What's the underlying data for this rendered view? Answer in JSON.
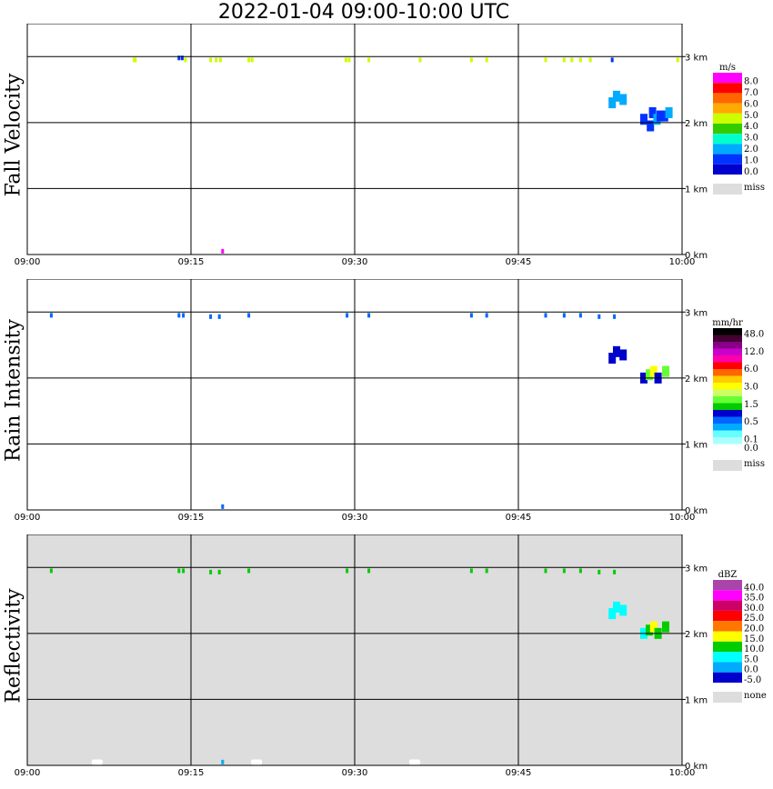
{
  "title": "2022-01-04   09:00-10:00 UTC",
  "x_ticks": [
    "09:00",
    "09:15",
    "09:30",
    "09:45",
    "10:00"
  ],
  "y_ticks": [
    "0 km",
    "1 km",
    "2 km",
    "3 km"
  ],
  "colors": {
    "grid": "#000000",
    "missing_bg": "#dddddd",
    "frame": "#000000"
  },
  "chart_data": [
    {
      "type": "heatmap",
      "name": "fall_velocity",
      "title": "Fall Velocity",
      "xlabel": "",
      "ylabel": "Fall Velocity",
      "xlim": [
        "09:00",
        "10:00"
      ],
      "ylim": [
        0,
        3.5
      ],
      "y_unit": "km",
      "grid": true,
      "background": "#ffffff",
      "colorbar": {
        "unit": "m/s",
        "labels": [
          "8.0",
          "7.0",
          "6.0",
          "5.0",
          "4.0",
          "3.0",
          "2.0",
          "1.0",
          "0.0"
        ],
        "colors": [
          "#ff00ff",
          "#ff0000",
          "#ff6600",
          "#ffaa00",
          "#ccff00",
          "#33cc00",
          "#00ffcc",
          "#00aaff",
          "#0033ff",
          "#0000cc"
        ],
        "missing_label": "miss",
        "missing_color": "#dddddd"
      },
      "blobs": [
        {
          "t": 9.8,
          "h": 2.95,
          "v": 4.5
        },
        {
          "t": 9.85,
          "h": 2.95,
          "v": 4.5
        },
        {
          "t": 9.9,
          "h": 2.95,
          "v": 4.5
        },
        {
          "t": 13.9,
          "h": 2.98,
          "v": 0.5
        },
        {
          "t": 14.2,
          "h": 2.98,
          "v": 0.5
        },
        {
          "t": 14.5,
          "h": 2.95,
          "v": 4.5
        },
        {
          "t": 16.8,
          "h": 2.95,
          "v": 4.5
        },
        {
          "t": 17.3,
          "h": 2.95,
          "v": 4.5
        },
        {
          "t": 17.7,
          "h": 2.95,
          "v": 4.5
        },
        {
          "t": 20.3,
          "h": 2.95,
          "v": 4.5
        },
        {
          "t": 20.6,
          "h": 2.95,
          "v": 4.5
        },
        {
          "t": 29.2,
          "h": 2.95,
          "v": 4.5
        },
        {
          "t": 29.5,
          "h": 2.95,
          "v": 4.5
        },
        {
          "t": 31.3,
          "h": 2.95,
          "v": 4.5
        },
        {
          "t": 36.0,
          "h": 2.95,
          "v": 4.5
        },
        {
          "t": 40.7,
          "h": 2.95,
          "v": 4.5
        },
        {
          "t": 42.1,
          "h": 2.95,
          "v": 4.5
        },
        {
          "t": 47.5,
          "h": 2.95,
          "v": 4.5
        },
        {
          "t": 49.2,
          "h": 2.95,
          "v": 4.5
        },
        {
          "t": 49.9,
          "h": 2.95,
          "v": 4.5
        },
        {
          "t": 50.7,
          "h": 2.95,
          "v": 4.5
        },
        {
          "t": 51.6,
          "h": 2.95,
          "v": 4.5
        },
        {
          "t": 53.6,
          "h": 2.95,
          "v": 0.5
        },
        {
          "t": 59.6,
          "h": 2.95,
          "v": 4.5
        },
        {
          "t": 53.6,
          "h": 2.3,
          "v": 1.5
        },
        {
          "t": 54.0,
          "h": 2.4,
          "v": 1.5
        },
        {
          "t": 54.6,
          "h": 2.35,
          "v": 1.5
        },
        {
          "t": 56.5,
          "h": 2.05,
          "v": 0.5
        },
        {
          "t": 57.1,
          "h": 1.95,
          "v": 0.5
        },
        {
          "t": 57.3,
          "h": 2.15,
          "v": 0.5
        },
        {
          "t": 57.7,
          "h": 2.05,
          "v": 1.5
        },
        {
          "t": 58.0,
          "h": 2.1,
          "v": 0.5
        },
        {
          "t": 58.4,
          "h": 2.1,
          "v": 0.5
        },
        {
          "t": 58.8,
          "h": 2.15,
          "v": 1.5
        },
        {
          "t": 17.9,
          "h": 0.05,
          "v": 8.5
        }
      ]
    },
    {
      "type": "heatmap",
      "name": "rain_intensity",
      "title": "Rain Intensity",
      "xlabel": "",
      "ylabel": "Rain Intensity",
      "xlim": [
        "09:00",
        "10:00"
      ],
      "ylim": [
        0,
        3.5
      ],
      "y_unit": "km",
      "grid": true,
      "background": "#ffffff",
      "colorbar": {
        "unit": "mm/hr",
        "labels": [
          "48.0",
          "",
          "12.0",
          "",
          "6.0",
          "",
          "3.0",
          "",
          "1.5",
          "",
          "0.5",
          "",
          "0.1",
          "0.0"
        ],
        "colors": [
          "#000000",
          "#440033",
          "#880088",
          "#cc00cc",
          "#ff00aa",
          "#ff0000",
          "#ff6600",
          "#ffcc00",
          "#ffff00",
          "#ccff66",
          "#66ff33",
          "#00cc00",
          "#0000cc",
          "#0066ff",
          "#00aaff",
          "#66ffff",
          "#aaffff",
          "#ffffff"
        ],
        "missing_label": "miss",
        "missing_color": "#dddddd"
      },
      "blobs": [
        {
          "t": 2.2,
          "h": 2.95,
          "v": 0.05
        },
        {
          "t": 13.9,
          "h": 2.95,
          "v": 0.05
        },
        {
          "t": 14.3,
          "h": 2.95,
          "v": 0.05
        },
        {
          "t": 16.8,
          "h": 2.93,
          "v": 0.05
        },
        {
          "t": 17.6,
          "h": 2.93,
          "v": 0.05
        },
        {
          "t": 20.3,
          "h": 2.95,
          "v": 0.05
        },
        {
          "t": 29.3,
          "h": 2.95,
          "v": 0.05
        },
        {
          "t": 31.3,
          "h": 2.95,
          "v": 0.05
        },
        {
          "t": 40.7,
          "h": 2.95,
          "v": 0.05
        },
        {
          "t": 42.1,
          "h": 2.95,
          "v": 0.05
        },
        {
          "t": 47.5,
          "h": 2.95,
          "v": 0.05
        },
        {
          "t": 49.2,
          "h": 2.95,
          "v": 0.05
        },
        {
          "t": 50.7,
          "h": 2.95,
          "v": 0.05
        },
        {
          "t": 52.4,
          "h": 2.93,
          "v": 0.05
        },
        {
          "t": 53.8,
          "h": 2.93,
          "v": 0.05
        },
        {
          "t": 53.6,
          "h": 2.3,
          "v": 0.3
        },
        {
          "t": 54.0,
          "h": 2.4,
          "v": 0.3
        },
        {
          "t": 54.6,
          "h": 2.35,
          "v": 0.3
        },
        {
          "t": 56.5,
          "h": 2.0,
          "v": 0.3
        },
        {
          "t": 57.0,
          "h": 2.05,
          "v": 1.0
        },
        {
          "t": 57.4,
          "h": 2.1,
          "v": 2.0
        },
        {
          "t": 57.8,
          "h": 2.0,
          "v": 0.3
        },
        {
          "t": 58.5,
          "h": 2.1,
          "v": 0.8
        },
        {
          "t": 17.9,
          "h": 0.05,
          "v": 0.05
        }
      ]
    },
    {
      "type": "heatmap",
      "name": "reflectivity",
      "title": "Reflectivity",
      "xlabel": "",
      "ylabel": "Reflectivity",
      "xlim": [
        "09:00",
        "10:00"
      ],
      "ylim": [
        0,
        3.5
      ],
      "y_unit": "km",
      "grid": true,
      "background": "#dddddd",
      "colorbar": {
        "unit": "dBZ",
        "labels": [
          "40.0",
          "35.0",
          "30.0",
          "25.0",
          "20.0",
          "15.0",
          "10.0",
          "5.0",
          "0.0",
          "-5.0"
        ],
        "colors": [
          "#aa44aa",
          "#ff00ff",
          "#cc0066",
          "#ff0000",
          "#ff7700",
          "#ffff00",
          "#00cc00",
          "#00ffff",
          "#00aaff",
          "#0000cc"
        ],
        "missing_label": "none",
        "missing_color": "#dddddd"
      },
      "blobs": [
        {
          "t": 2.2,
          "h": 2.95,
          "v": 10
        },
        {
          "t": 13.9,
          "h": 2.95,
          "v": 10
        },
        {
          "t": 14.3,
          "h": 2.95,
          "v": 10
        },
        {
          "t": 16.8,
          "h": 2.93,
          "v": 12
        },
        {
          "t": 17.6,
          "h": 2.93,
          "v": 12
        },
        {
          "t": 20.3,
          "h": 2.95,
          "v": 10
        },
        {
          "t": 29.3,
          "h": 2.95,
          "v": 10
        },
        {
          "t": 31.3,
          "h": 2.95,
          "v": 10
        },
        {
          "t": 40.7,
          "h": 2.95,
          "v": 10
        },
        {
          "t": 42.1,
          "h": 2.95,
          "v": 10
        },
        {
          "t": 47.5,
          "h": 2.95,
          "v": 10
        },
        {
          "t": 49.2,
          "h": 2.95,
          "v": 10
        },
        {
          "t": 50.7,
          "h": 2.95,
          "v": 10
        },
        {
          "t": 52.4,
          "h": 2.93,
          "v": 10
        },
        {
          "t": 53.8,
          "h": 2.93,
          "v": 10
        },
        {
          "t": 53.6,
          "h": 2.3,
          "v": 7
        },
        {
          "t": 54.0,
          "h": 2.4,
          "v": 7
        },
        {
          "t": 54.6,
          "h": 2.35,
          "v": 7
        },
        {
          "t": 56.5,
          "h": 2.0,
          "v": 7
        },
        {
          "t": 57.0,
          "h": 2.05,
          "v": 12
        },
        {
          "t": 57.4,
          "h": 2.1,
          "v": 17
        },
        {
          "t": 57.8,
          "h": 2.0,
          "v": 12
        },
        {
          "t": 58.5,
          "h": 2.1,
          "v": 12
        },
        {
          "t": 17.9,
          "h": 0.05,
          "v": 0
        }
      ],
      "clear_gaps": [
        {
          "t": 6.4,
          "h": 0.02
        },
        {
          "t": 21.0,
          "h": 0.02
        },
        {
          "t": 35.5,
          "h": 0.02
        }
      ]
    }
  ]
}
